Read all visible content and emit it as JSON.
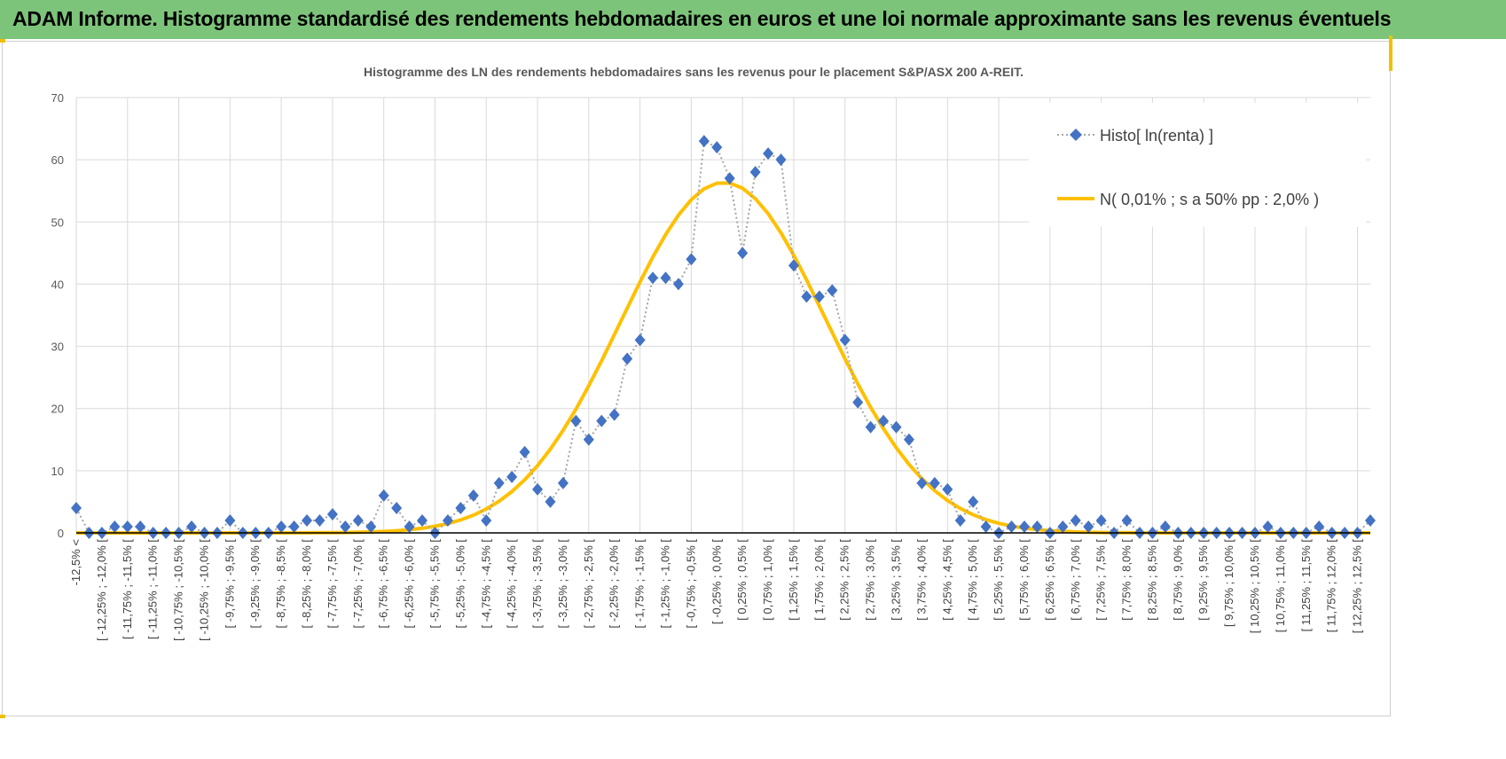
{
  "header": {
    "title": "ADAM Informe. Histogramme standardisé des rendements hebdomadaires en euros et une loi normale approximante sans les revenus éventuels"
  },
  "chart_data": {
    "type": "line",
    "title": "Histogramme des LN des rendements hebdomadaires sans les revenus pour le placement S&P/ASX 200 A-REIT.",
    "xlabel": "",
    "ylabel": "",
    "ylim": [
      0,
      70
    ],
    "yticks": [
      0,
      10,
      20,
      30,
      40,
      50,
      60,
      70
    ],
    "grid": true,
    "legend_placement": "top-right",
    "bin_width_pct": 0.25,
    "x_range_pct": [
      -12.5,
      12.5
    ],
    "series": [
      {
        "name": "Histo[ ln(renta) ]",
        "style": "dotted line with diamond markers",
        "color": "#4472c4",
        "values": [
          4,
          0,
          0,
          1,
          1,
          1,
          0,
          0,
          0,
          1,
          0,
          0,
          2,
          0,
          0,
          0,
          1,
          1,
          2,
          2,
          3,
          1,
          2,
          1,
          6,
          4,
          1,
          2,
          0,
          2,
          4,
          6,
          2,
          8,
          9,
          13,
          7,
          5,
          8,
          18,
          15,
          18,
          19,
          28,
          31,
          41,
          41,
          40,
          44,
          63,
          62,
          57,
          45,
          58,
          61,
          60,
          43,
          38,
          38,
          39,
          31,
          21,
          17,
          18,
          17,
          15,
          8,
          8,
          7,
          2,
          5,
          1,
          0,
          1,
          1,
          1,
          0,
          1,
          2,
          1,
          2,
          0,
          2,
          0,
          0,
          1,
          0,
          0,
          0,
          0,
          0,
          0,
          0,
          1,
          0,
          0,
          0,
          1,
          0,
          0,
          0,
          2
        ]
      },
      {
        "name": "N( 0,01% ; s a 50% pp : 2,0% )",
        "style": "solid line",
        "color": "#ffc000",
        "mean_pct": 0.01,
        "sd_pct": 2.0
      }
    ]
  }
}
